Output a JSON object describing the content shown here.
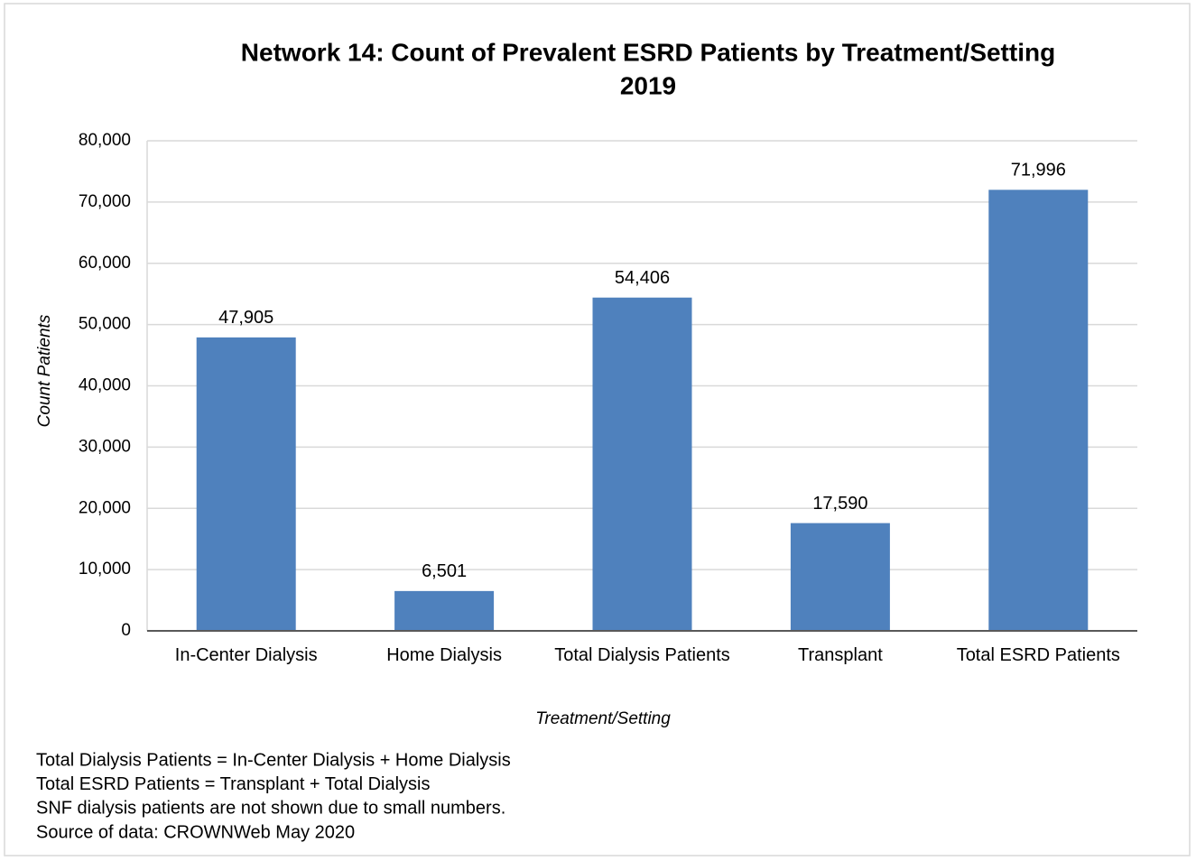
{
  "chart_data": {
    "type": "bar",
    "title": "Network 14: Count of Prevalent ESRD Patients by Treatment/Setting",
    "subtitle": "2019",
    "y_label": "Count Patients",
    "x_label": "Treatment/Setting",
    "categories": [
      "In-Center Dialysis",
      "Home Dialysis",
      "Total Dialysis Patients",
      "Transplant",
      "Total ESRD Patients"
    ],
    "values": [
      47905,
      6501,
      54406,
      17590,
      71996
    ],
    "value_labels": [
      "47,905",
      "6,501",
      "54,406",
      "17,590",
      "71,996"
    ],
    "color": "#4f81bd",
    "ylim": [
      0,
      80000
    ],
    "yticks": [
      0,
      {
        "value": 10000,
        "label": "10,000"
      },
      {
        "value": 20000,
        "label": "20,000"
      },
      {
        "value": 30000,
        "label": "30,000"
      },
      {
        "value": 40000,
        "label": "40,000"
      },
      {
        "value": 50000,
        "label": "50,000"
      },
      {
        "value": 60000,
        "label": "60,000"
      },
      {
        "value": 70000,
        "label": "70,000"
      },
      {
        "value": 80000,
        "label": "80,000"
      }
    ],
    "grid": true,
    "notes": [
      "Total Dialysis Patients = In-Center Dialysis + Home Dialysis",
      "Total ESRD Patients = Transplant + Total Dialysis",
      "SNF dialysis patients are not shown due to small numbers.",
      "Source of data:  CROWNWeb May 2020"
    ]
  }
}
